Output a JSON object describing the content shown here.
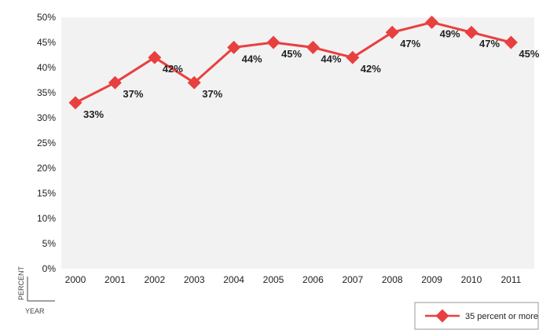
{
  "chart_data": {
    "type": "line",
    "title": "",
    "xlabel": "YEAR",
    "ylabel": "PERCENT",
    "categories": [
      "2000",
      "2001",
      "2002",
      "2003",
      "2004",
      "2005",
      "2006",
      "2007",
      "2008",
      "2009",
      "2010",
      "2011"
    ],
    "series": [
      {
        "name": "35 percent or more",
        "values": [
          33,
          37,
          42,
          37,
          44,
          45,
          44,
          42,
          47,
          49,
          47,
          45
        ],
        "labels": [
          "33%",
          "37%",
          "42%",
          "37%",
          "44%",
          "45%",
          "44%",
          "42%",
          "47%",
          "49%",
          "47%",
          "45%"
        ],
        "color": "#e8403f"
      }
    ],
    "yticks": [
      "0%",
      "5%",
      "10%",
      "15%",
      "20%",
      "25%",
      "30%",
      "35%",
      "40%",
      "45%",
      "50%"
    ],
    "ylim": [
      0,
      50
    ],
    "grid": false,
    "legend_position": "bottom-right",
    "plot_background": "#f2f2f2"
  }
}
